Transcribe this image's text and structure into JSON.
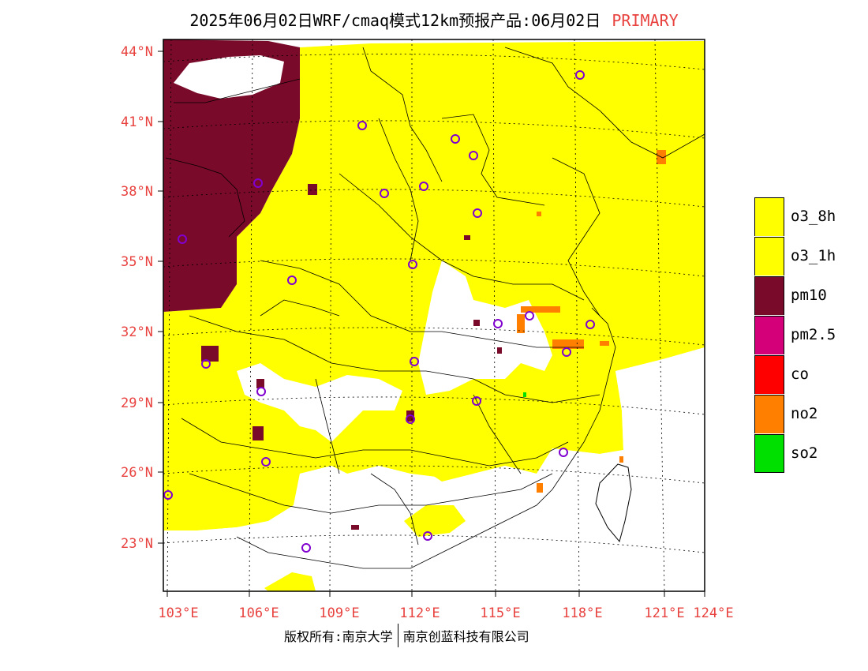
{
  "title": {
    "main": "2025年06月02日WRF/cmaq模式12km预报产品:06月02日",
    "tag": "PRIMARY"
  },
  "axes": {
    "lat_labels": [
      "44°N",
      "41°N",
      "38°N",
      "35°N",
      "32°N",
      "29°N",
      "26°N",
      "23°N"
    ],
    "lon_labels": [
      "103°E",
      "106°E",
      "109°E",
      "112°E",
      "115°E",
      "118°E",
      "121°E",
      "124°E"
    ]
  },
  "legend": [
    {
      "label": "o3_8h",
      "color": "#ffff00"
    },
    {
      "label": "o3_1h",
      "color": "#ffff00"
    },
    {
      "label": "pm10",
      "color": "#7a0a2a"
    },
    {
      "label": "pm2.5",
      "color": "#d4007a"
    },
    {
      "label": "co",
      "color": "#ff0000"
    },
    {
      "label": "no2",
      "color": "#ff7f00"
    },
    {
      "label": "so2",
      "color": "#00e000"
    }
  ],
  "map_colors": {
    "o3": "#ffff00",
    "pm10": "#7a0a2a",
    "no2": "#ff7f00",
    "so2": "#00e000",
    "station": "#8000d0",
    "land_none": "#ffffff",
    "boundary": "#000000"
  },
  "footer": {
    "left": "版权所有:南京大学",
    "right": "南京创蓝科技有限公司"
  }
}
